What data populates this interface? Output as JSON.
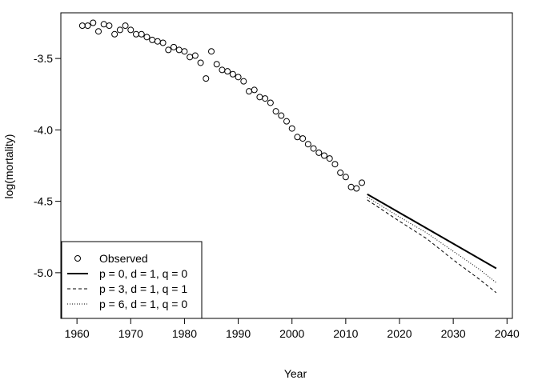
{
  "chart_data": {
    "type": "line",
    "xlabel": "Year",
    "ylabel": "log(mortality)",
    "xlim": [
      1957,
      2041
    ],
    "ylim": [
      -5.32,
      -3.18
    ],
    "x_ticks": [
      1960,
      1970,
      1980,
      1990,
      2000,
      2010,
      2020,
      2030,
      2040
    ],
    "y_ticks": [
      -5.0,
      -4.5,
      -4.0,
      -3.5
    ],
    "y_tick_labels": [
      "-5.0",
      "-4.5",
      "-4.0",
      "-3.5"
    ],
    "grid": false,
    "legend_position": "bottom-left",
    "observed": {
      "name": "Observed",
      "x": [
        1961,
        1962,
        1963,
        1964,
        1965,
        1966,
        1967,
        1968,
        1969,
        1970,
        1971,
        1972,
        1973,
        1974,
        1975,
        1976,
        1977,
        1978,
        1979,
        1980,
        1981,
        1982,
        1983,
        1984,
        1985,
        1986,
        1987,
        1988,
        1989,
        1990,
        1991,
        1992,
        1993,
        1994,
        1995,
        1996,
        1997,
        1998,
        1999,
        2000,
        2001,
        2002,
        2003,
        2004,
        2005,
        2006,
        2007,
        2008,
        2009,
        2010,
        2011,
        2012,
        2013
      ],
      "y": [
        -3.27,
        -3.27,
        -3.25,
        -3.31,
        -3.26,
        -3.27,
        -3.33,
        -3.3,
        -3.27,
        -3.3,
        -3.33,
        -3.33,
        -3.35,
        -3.37,
        -3.38,
        -3.39,
        -3.44,
        -3.42,
        -3.44,
        -3.45,
        -3.49,
        -3.48,
        -3.53,
        -3.64,
        -3.45,
        -3.54,
        -3.58,
        -3.59,
        -3.61,
        -3.63,
        -3.66,
        -3.73,
        -3.72,
        -3.77,
        -3.78,
        -3.81,
        -3.87,
        -3.9,
        -3.94,
        -3.99,
        -4.05,
        -4.06,
        -4.1,
        -4.13,
        -4.16,
        -4.18,
        -4.2,
        -4.24,
        -4.3,
        -4.33,
        -4.4,
        -4.41,
        -4.37
      ]
    },
    "series": [
      {
        "name": "p = 0, d = 1, q = 0",
        "style": "solid",
        "x": [
          2014,
          2038
        ],
        "y": [
          -4.45,
          -4.97
        ]
      },
      {
        "name": "p = 3, d = 1, q = 1",
        "style": "dashed",
        "x": [
          2014,
          2020,
          2025,
          2030,
          2035,
          2038
        ],
        "y": [
          -4.49,
          -4.64,
          -4.76,
          -4.91,
          -5.05,
          -5.14
        ]
      },
      {
        "name": "p = 6, d = 1, q = 0",
        "style": "dotted",
        "x": [
          2014,
          2020,
          2025,
          2030,
          2035,
          2038
        ],
        "y": [
          -4.47,
          -4.61,
          -4.72,
          -4.85,
          -4.98,
          -5.07
        ]
      }
    ]
  }
}
